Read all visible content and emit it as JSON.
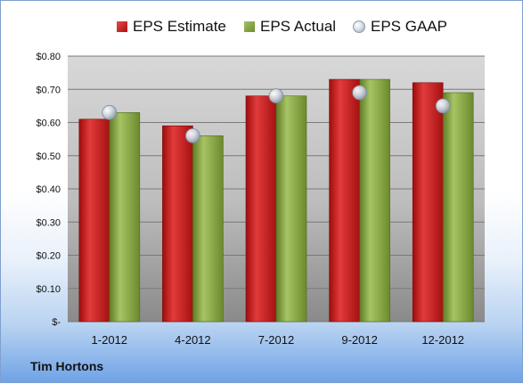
{
  "chart_data": {
    "type": "bar",
    "title": "",
    "xlabel": "",
    "ylabel": "",
    "categories": [
      "1-2012",
      "4-2012",
      "7-2012",
      "9-2012",
      "12-2012"
    ],
    "series": [
      {
        "name": "EPS Estimate",
        "kind": "bar",
        "color": "#c81e1e",
        "values": [
          0.61,
          0.59,
          0.68,
          0.73,
          0.72
        ]
      },
      {
        "name": "EPS Actual",
        "kind": "bar",
        "color": "#8aa843",
        "values": [
          0.63,
          0.56,
          0.68,
          0.73,
          0.69
        ]
      },
      {
        "name": "EPS GAAP",
        "kind": "marker",
        "color": "#c9d2dc",
        "values": [
          0.63,
          0.56,
          0.68,
          0.69,
          0.65
        ]
      }
    ],
    "ylim": [
      0,
      0.8
    ],
    "yticks": [
      0,
      0.1,
      0.2,
      0.3,
      0.4,
      0.5,
      0.6,
      0.7,
      0.8
    ],
    "ytick_labels": [
      "$-",
      "$0.10",
      "$0.20",
      "$0.30",
      "$0.40",
      "$0.50",
      "$0.60",
      "$0.70",
      "$0.80"
    ],
    "grid": true,
    "legend_position": "top"
  },
  "legend": {
    "estimate": "EPS Estimate",
    "actual": "EPS Actual",
    "gaap": "EPS GAAP"
  },
  "footer": {
    "company": "Tim Hortons"
  }
}
